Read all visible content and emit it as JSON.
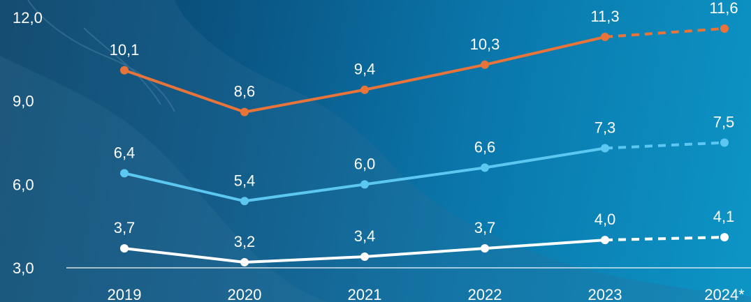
{
  "chart_data": {
    "type": "line",
    "categories": [
      "2019",
      "2020",
      "2021",
      "2022",
      "2023",
      "2024*"
    ],
    "series": [
      {
        "values": [
          10.1,
          8.6,
          9.4,
          10.3,
          11.3,
          11.6
        ],
        "color": "#e8743a",
        "forecast_from_index": 4
      },
      {
        "values": [
          6.4,
          5.4,
          6.0,
          6.6,
          7.3,
          7.5
        ],
        "color": "#5cc8f2",
        "forecast_from_index": 4
      },
      {
        "values": [
          3.7,
          3.2,
          3.4,
          3.7,
          4.0,
          4.1
        ],
        "color": "#ffffff",
        "forecast_from_index": 4
      }
    ],
    "y_ticks": [
      "3,0",
      "6,0",
      "9,0",
      "12,0"
    ],
    "ylim": [
      3.0,
      12.0
    ],
    "xlabel": "",
    "ylabel": "",
    "title": "",
    "grid": false,
    "legend": "none",
    "value_labels": true
  }
}
